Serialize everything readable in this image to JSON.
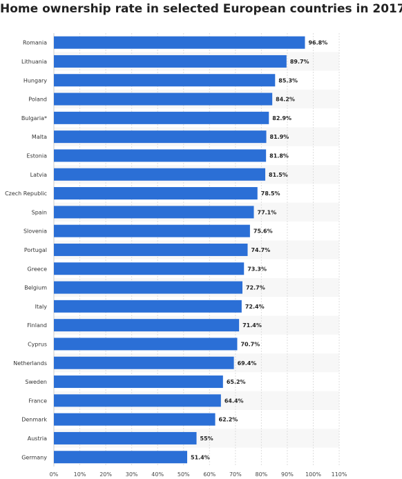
{
  "chart_data": {
    "type": "bar",
    "orientation": "horizontal",
    "title": "Home ownership rate in selected European countries in 2017",
    "categories": [
      "Romania",
      "Lithuania",
      "Hungary",
      "Poland",
      "Bulgaria*",
      "Malta",
      "Estonia",
      "Latvia",
      "Czech Republic",
      "Spain",
      "Slovenia",
      "Portugal",
      "Greece",
      "Belgium",
      "Italy",
      "Finland",
      "Cyprus",
      "Netherlands",
      "Sweden",
      "France",
      "Denmark",
      "Austria",
      "Germany"
    ],
    "values": [
      96.8,
      89.7,
      85.3,
      84.2,
      82.9,
      81.9,
      81.8,
      81.5,
      78.5,
      77.1,
      75.6,
      74.7,
      73.3,
      72.7,
      72.4,
      71.4,
      70.7,
      69.4,
      65.2,
      64.4,
      62.2,
      55,
      51.4
    ],
    "value_labels": [
      "96.8%",
      "89.7%",
      "85.3%",
      "84.2%",
      "82.9%",
      "81.9%",
      "81.8%",
      "81.5%",
      "78.5%",
      "77.1%",
      "75.6%",
      "74.7%",
      "73.3%",
      "72.7%",
      "72.4%",
      "71.4%",
      "70.7%",
      "69.4%",
      "65.2%",
      "64.4%",
      "62.2%",
      "55%",
      "51.4%"
    ],
    "xticks": [
      "0%",
      "10%",
      "20%",
      "30%",
      "40%",
      "50%",
      "60%",
      "70%",
      "80%",
      "90%",
      "100%",
      "110%"
    ],
    "xlim": [
      0,
      110
    ],
    "grid": true,
    "bar_color": "#2b6fd6"
  }
}
